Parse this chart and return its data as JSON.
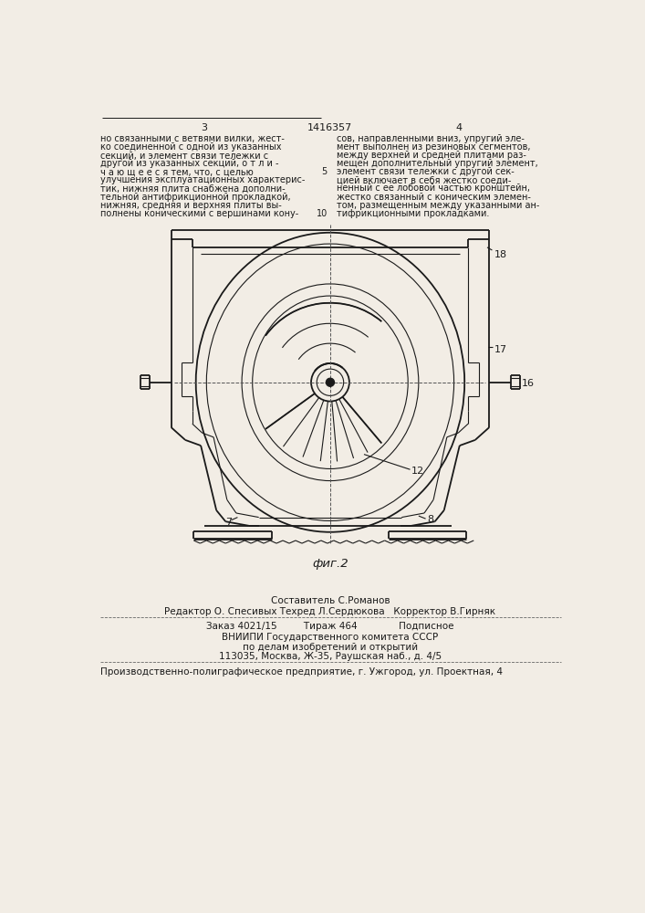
{
  "page_number_left": "3",
  "page_number_center": "1416357",
  "page_number_right": "4",
  "text_left": "но связанными с ветвями вилки, жест-\nко соединенной с одной из указанных\nсекций, и элемент связи тележки с\nдругой из указанных секций, о т л и -\nч а ю щ е е с я тем, что, с целью\nулучшения эксплуатационных характерис-\nтик, нижняя плита снабжена дополни-\nтельной антифрикционной прокладкой,\nнижняя, средняя и верхняя плиты вы-\nполнены коническими с вершинами кону-",
  "text_right": "сов, направленными вниз, упругий эле-\nмент выполнен из резиновых сегментов,\nмежду верхней и средней плитами раз-\nмещен дополнительный упругий элемент,\nэлемент связи тележки с другой сек-\nцией включает в себя жестко соеди-\nненный с ее лобовой частью кронштейн,\nжестко связанный с коническим элемен-\nтом, размещенным между указанными ан-\nтифрикционными прокладками.",
  "fig_label": "фиг.2",
  "label_7": "7",
  "label_8": "8",
  "label_12": "12",
  "label_16": "16",
  "label_17": "17",
  "label_18": "18",
  "footer_line1": "Составитель С.Романов",
  "footer_line2": "Редактор О. Спесивых Техред Л.Сердюкова   Корректор В.Гирняк",
  "footer_line3": "Заказ 4021/15         Тираж 464              Подписное",
  "footer_line4": "ВНИИПИ Государственного комитета СССР",
  "footer_line5": "по делам изобретений и открытий",
  "footer_line6": "113035, Москва, Ж-35, Раушская наб., д. 4/5",
  "footer_line7": "Производственно-полиграфическое предприятие, г. Ужгород, ул. Проектная, 4",
  "bg_color": "#f2ede5",
  "line_color": "#1a1a1a",
  "text_color": "#1a1a1a"
}
